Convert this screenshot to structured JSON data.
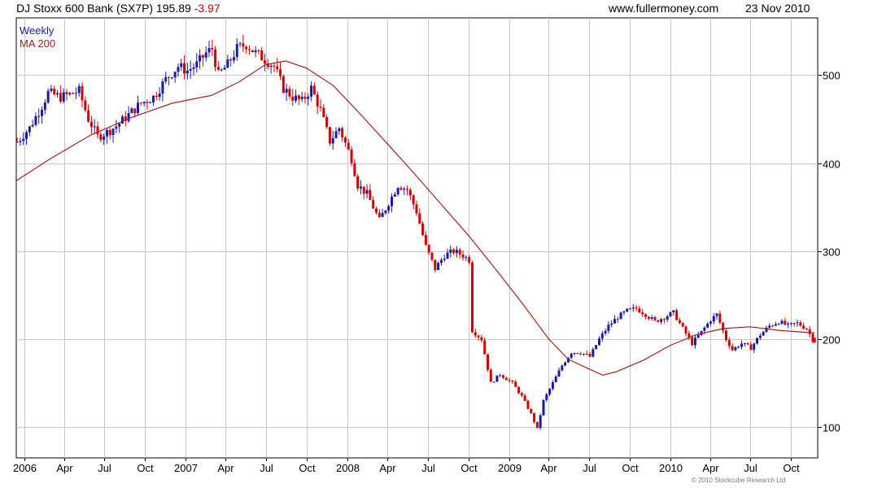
{
  "header": {
    "name": "DJ Stoxx 600 Bank (SX7P)",
    "price": "195.89",
    "change": "-3.97",
    "site": "www.fullermoney.com",
    "date": "23 Nov 2010"
  },
  "legend": {
    "weekly": "Weekly",
    "ma": "MA 200"
  },
  "copyright": "© 2010 Stockcube Research Ltd",
  "colors": {
    "up": "#1a1aa8",
    "down": "#d40000",
    "ma": "#a02020",
    "grid": "#c8c8c8"
  },
  "chart_data": {
    "type": "line",
    "title": "DJ Stoxx 600 Bank (SX7P)",
    "frequency": "weekly candlestick",
    "xlabel": "",
    "ylabel": "",
    "ylim": [
      65,
      565
    ],
    "xlim": [
      "2005-12-14",
      "2010-11-30"
    ],
    "y_ticks": [
      100,
      200,
      300,
      400,
      500
    ],
    "x_ticks": [
      {
        "label": "2006",
        "date": "2006-01-01"
      },
      {
        "label": "Apr",
        "date": "2006-04-01"
      },
      {
        "label": "Jul",
        "date": "2006-07-01"
      },
      {
        "label": "Oct",
        "date": "2006-10-01"
      },
      {
        "label": "2007",
        "date": "2007-01-01"
      },
      {
        "label": "Apr",
        "date": "2007-04-01"
      },
      {
        "label": "Jul",
        "date": "2007-07-01"
      },
      {
        "label": "Oct",
        "date": "2007-10-01"
      },
      {
        "label": "2008",
        "date": "2008-01-01"
      },
      {
        "label": "Apr",
        "date": "2008-04-01"
      },
      {
        "label": "Jul",
        "date": "2008-07-01"
      },
      {
        "label": "Oct",
        "date": "2008-10-01"
      },
      {
        "label": "2009",
        "date": "2009-01-01"
      },
      {
        "label": "Apr",
        "date": "2009-04-01"
      },
      {
        "label": "Jul",
        "date": "2009-07-01"
      },
      {
        "label": "Oct",
        "date": "2009-10-01"
      },
      {
        "label": "2010",
        "date": "2010-01-01"
      },
      {
        "label": "Apr",
        "date": "2010-04-01"
      },
      {
        "label": "Jul",
        "date": "2010-07-01"
      },
      {
        "label": "Oct",
        "date": "2010-10-01"
      }
    ],
    "grid": true,
    "y_axis_side": "right",
    "series": [
      {
        "name": "Weekly",
        "type": "price",
        "points": [
          [
            "2005-12-16",
            424
          ],
          [
            "2006-01-13",
            440
          ],
          [
            "2006-02-10",
            465
          ],
          [
            "2006-02-24",
            480
          ],
          [
            "2006-03-24",
            475
          ],
          [
            "2006-04-14",
            478
          ],
          [
            "2006-05-05",
            482
          ],
          [
            "2006-05-26",
            450
          ],
          [
            "2006-06-16",
            430
          ],
          [
            "2006-07-07",
            435
          ],
          [
            "2006-07-28",
            442
          ],
          [
            "2006-08-25",
            455
          ],
          [
            "2006-09-22",
            468
          ],
          [
            "2006-10-20",
            475
          ],
          [
            "2006-11-17",
            495
          ],
          [
            "2006-12-15",
            510
          ],
          [
            "2007-01-05",
            505
          ],
          [
            "2007-01-26",
            512
          ],
          [
            "2007-02-16",
            525
          ],
          [
            "2007-03-02",
            530
          ],
          [
            "2007-03-16",
            500
          ],
          [
            "2007-04-06",
            512
          ],
          [
            "2007-04-27",
            530
          ],
          [
            "2007-05-18",
            535
          ],
          [
            "2007-06-08",
            525
          ],
          [
            "2007-06-29",
            518
          ],
          [
            "2007-07-20",
            510
          ],
          [
            "2007-08-10",
            485
          ],
          [
            "2007-08-31",
            475
          ],
          [
            "2007-09-21",
            470
          ],
          [
            "2007-10-12",
            485
          ],
          [
            "2007-11-02",
            460
          ],
          [
            "2007-11-23",
            425
          ],
          [
            "2007-12-14",
            440
          ],
          [
            "2008-01-11",
            405
          ],
          [
            "2008-01-25",
            375
          ],
          [
            "2008-02-15",
            365
          ],
          [
            "2008-03-14",
            335
          ],
          [
            "2008-04-04",
            355
          ],
          [
            "2008-04-25",
            375
          ],
          [
            "2008-05-16",
            370
          ],
          [
            "2008-06-06",
            345
          ],
          [
            "2008-06-27",
            305
          ],
          [
            "2008-07-18",
            280
          ],
          [
            "2008-08-08",
            295
          ],
          [
            "2008-08-29",
            300
          ],
          [
            "2008-09-19",
            295
          ],
          [
            "2008-10-03",
            290
          ],
          [
            "2008-10-10",
            210
          ],
          [
            "2008-10-31",
            200
          ],
          [
            "2008-11-21",
            150
          ],
          [
            "2008-12-12",
            160
          ],
          [
            "2009-01-09",
            150
          ],
          [
            "2009-01-30",
            135
          ],
          [
            "2009-02-20",
            115
          ],
          [
            "2009-03-06",
            98
          ],
          [
            "2009-03-20",
            130
          ],
          [
            "2009-04-10",
            150
          ],
          [
            "2009-05-01",
            170
          ],
          [
            "2009-05-22",
            185
          ],
          [
            "2009-06-12",
            185
          ],
          [
            "2009-07-03",
            180
          ],
          [
            "2009-07-24",
            200
          ],
          [
            "2009-08-14",
            215
          ],
          [
            "2009-09-04",
            225
          ],
          [
            "2009-09-25",
            232
          ],
          [
            "2009-10-16",
            235
          ],
          [
            "2009-11-06",
            228
          ],
          [
            "2009-11-27",
            220
          ],
          [
            "2009-12-18",
            225
          ],
          [
            "2010-01-08",
            230
          ],
          [
            "2010-01-29",
            212
          ],
          [
            "2010-02-19",
            195
          ],
          [
            "2010-03-12",
            208
          ],
          [
            "2010-04-02",
            222
          ],
          [
            "2010-04-16",
            228
          ],
          [
            "2010-05-07",
            200
          ],
          [
            "2010-05-21",
            188
          ],
          [
            "2010-06-11",
            195
          ],
          [
            "2010-07-02",
            190
          ],
          [
            "2010-07-23",
            205
          ],
          [
            "2010-08-13",
            215
          ],
          [
            "2010-09-03",
            220
          ],
          [
            "2010-09-24",
            215
          ],
          [
            "2010-10-15",
            218
          ],
          [
            "2010-11-05",
            212
          ],
          [
            "2010-11-23",
            196
          ]
        ]
      },
      {
        "name": "MA 200",
        "type": "line",
        "points": [
          [
            "2005-12-14",
            380
          ],
          [
            "2006-03-01",
            405
          ],
          [
            "2006-06-01",
            432
          ],
          [
            "2006-09-01",
            452
          ],
          [
            "2006-12-01",
            468
          ],
          [
            "2007-03-01",
            477
          ],
          [
            "2007-05-01",
            492
          ],
          [
            "2007-07-01",
            512
          ],
          [
            "2007-08-15",
            516
          ],
          [
            "2007-10-01",
            508
          ],
          [
            "2007-12-01",
            488
          ],
          [
            "2008-02-01",
            455
          ],
          [
            "2008-04-01",
            422
          ],
          [
            "2008-06-01",
            388
          ],
          [
            "2008-08-01",
            353
          ],
          [
            "2008-10-01",
            318
          ],
          [
            "2008-12-01",
            280
          ],
          [
            "2009-02-01",
            240
          ],
          [
            "2009-04-01",
            200
          ],
          [
            "2009-05-15",
            177
          ],
          [
            "2009-07-01",
            166
          ],
          [
            "2009-08-01",
            159
          ],
          [
            "2009-09-01",
            163
          ],
          [
            "2009-11-01",
            176
          ],
          [
            "2010-01-01",
            193
          ],
          [
            "2010-03-01",
            205
          ],
          [
            "2010-05-01",
            212
          ],
          [
            "2010-07-01",
            214
          ],
          [
            "2010-09-01",
            210
          ],
          [
            "2010-11-23",
            207
          ]
        ]
      }
    ]
  }
}
